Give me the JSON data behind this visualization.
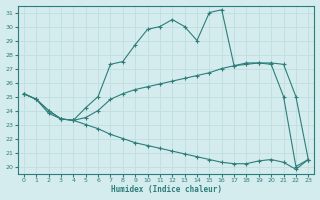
{
  "xlabel": "Humidex (Indice chaleur)",
  "background_color": "#d4ecee",
  "grid_color": "#c0dde0",
  "line_color": "#2d7d7a",
  "xlim": [
    -0.5,
    23.5
  ],
  "ylim": [
    19.5,
    31.5
  ],
  "yticks": [
    20,
    21,
    22,
    23,
    24,
    25,
    26,
    27,
    28,
    29,
    30,
    31
  ],
  "xticks": [
    0,
    1,
    2,
    3,
    4,
    5,
    6,
    7,
    8,
    9,
    10,
    11,
    12,
    13,
    14,
    15,
    16,
    17,
    18,
    19,
    20,
    21,
    22,
    23
  ],
  "line1_x": [
    0,
    1,
    2,
    3,
    4,
    5,
    6,
    7,
    8,
    9,
    10,
    11,
    12,
    13,
    14,
    15,
    16,
    17,
    18,
    19,
    20,
    21,
    22,
    23
  ],
  "line1_y": [
    25.2,
    24.8,
    23.8,
    23.4,
    23.3,
    24.2,
    25.0,
    27.3,
    27.5,
    28.7,
    29.8,
    30.0,
    30.5,
    30.0,
    29.0,
    31.0,
    31.2,
    27.2,
    27.4,
    27.4,
    27.3,
    25.0,
    20.0,
    20.5
  ],
  "line2_x": [
    0,
    1,
    2,
    3,
    4,
    5,
    6,
    7,
    8,
    9,
    10,
    11,
    12,
    13,
    14,
    15,
    16,
    17,
    18,
    19,
    20,
    21,
    22,
    23
  ],
  "line2_y": [
    25.2,
    24.8,
    24.0,
    23.4,
    23.3,
    23.5,
    24.0,
    24.8,
    25.2,
    25.5,
    25.7,
    25.9,
    26.1,
    26.3,
    26.5,
    26.7,
    27.0,
    27.2,
    27.3,
    27.4,
    27.4,
    27.3,
    25.0,
    20.5
  ],
  "line3_x": [
    0,
    1,
    2,
    3,
    4,
    5,
    6,
    7,
    8,
    9,
    10,
    11,
    12,
    13,
    14,
    15,
    16,
    17,
    18,
    19,
    20,
    21,
    22,
    23
  ],
  "line3_y": [
    25.2,
    24.8,
    24.0,
    23.4,
    23.3,
    23.0,
    22.7,
    22.3,
    22.0,
    21.7,
    21.5,
    21.3,
    21.1,
    20.9,
    20.7,
    20.5,
    20.3,
    20.2,
    20.2,
    20.4,
    20.5,
    20.3,
    19.8,
    20.5
  ]
}
